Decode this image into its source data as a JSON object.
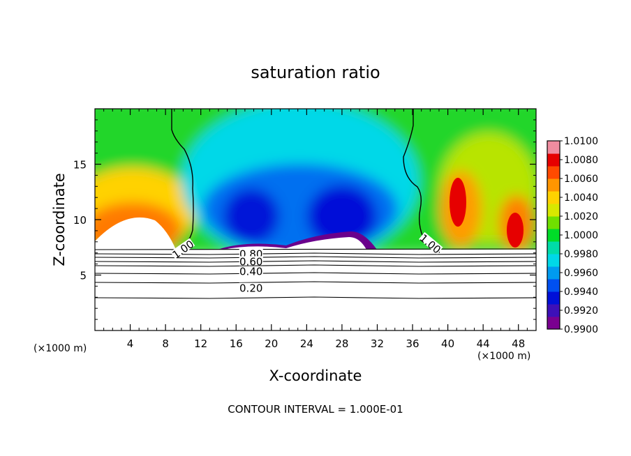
{
  "chart_data": {
    "type": "heatmap",
    "title": "saturation ratio",
    "xlabel": "X-coordinate",
    "ylabel": "Z-coordinate",
    "x_unit": "(×1000 m)",
    "y_unit": "(×1000 m)",
    "xlim": [
      0,
      50
    ],
    "ylim": [
      0,
      20
    ],
    "x_ticks": [
      4,
      8,
      12,
      16,
      20,
      24,
      28,
      32,
      36,
      40,
      44,
      48
    ],
    "x_tick_labels": [
      "4",
      "8",
      "12",
      "16",
      "20",
      "24",
      "28",
      "32",
      "36",
      "40",
      "44",
      "48"
    ],
    "y_ticks": [
      5,
      10,
      15
    ],
    "y_tick_labels": [
      "5",
      "10",
      "15"
    ],
    "footer": "CONTOUR INTERVAL = 1.000E-01",
    "colorbar": {
      "min": 0.99,
      "max": 1.01,
      "labels": [
        "1.0100",
        "1.0080",
        "1.0060",
        "1.0040",
        "1.0020",
        "1.0000",
        "0.9980",
        "0.9960",
        "0.9940",
        "0.9920",
        "0.9900"
      ],
      "colors": [
        "#7a0090",
        "#3d10b8",
        "#0010d8",
        "#0050f0",
        "#009bf0",
        "#00d8e8",
        "#00dca8",
        "#00dc28",
        "#70e000",
        "#d8e800",
        "#ffd200",
        "#ff9600",
        "#ff4a00",
        "#e60000",
        "#f08ca0"
      ]
    },
    "contours": [
      {
        "label": "1.00",
        "x": 10.0,
        "y": 7.3
      },
      {
        "label": "1.00",
        "x": 38.0,
        "y": 7.8
      },
      {
        "label": "0.80",
        "x": 17.7,
        "y": 6.9
      },
      {
        "label": "0.60",
        "x": 17.7,
        "y": 6.2
      },
      {
        "label": "0.40",
        "x": 17.7,
        "y": 5.3
      },
      {
        "label": "0.20",
        "x": 17.7,
        "y": 3.8
      }
    ]
  }
}
